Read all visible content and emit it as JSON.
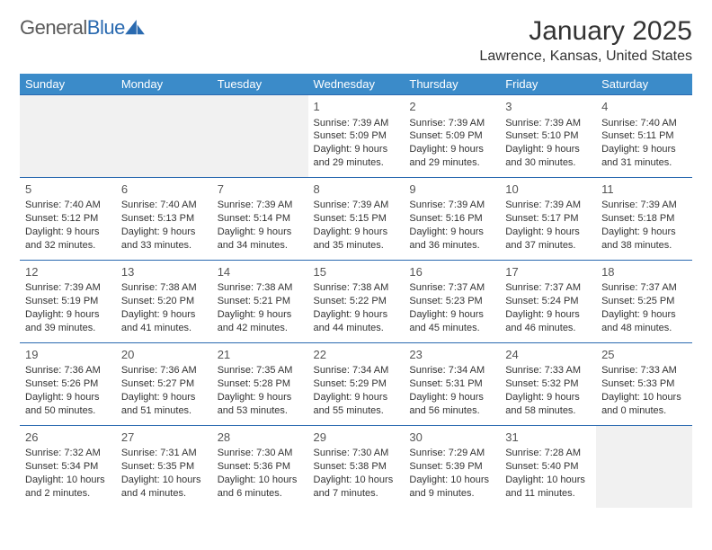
{
  "logo": {
    "text_general": "General",
    "text_blue": "Blue"
  },
  "title": "January 2025",
  "location": "Lawrence, Kansas, United States",
  "colors": {
    "header_bg": "#3b8bc9",
    "header_text": "#ffffff",
    "border": "#2a6ab0",
    "empty_bg": "#f1f1f1",
    "text": "#333333",
    "logo_gray": "#5a5a5a",
    "logo_blue": "#2a6ab0"
  },
  "day_headers": [
    "Sunday",
    "Monday",
    "Tuesday",
    "Wednesday",
    "Thursday",
    "Friday",
    "Saturday"
  ],
  "first_weekday_index": 3,
  "days": [
    {
      "n": 1,
      "sunrise": "7:39 AM",
      "sunset": "5:09 PM",
      "daylight": "9 hours and 29 minutes."
    },
    {
      "n": 2,
      "sunrise": "7:39 AM",
      "sunset": "5:09 PM",
      "daylight": "9 hours and 29 minutes."
    },
    {
      "n": 3,
      "sunrise": "7:39 AM",
      "sunset": "5:10 PM",
      "daylight": "9 hours and 30 minutes."
    },
    {
      "n": 4,
      "sunrise": "7:40 AM",
      "sunset": "5:11 PM",
      "daylight": "9 hours and 31 minutes."
    },
    {
      "n": 5,
      "sunrise": "7:40 AM",
      "sunset": "5:12 PM",
      "daylight": "9 hours and 32 minutes."
    },
    {
      "n": 6,
      "sunrise": "7:40 AM",
      "sunset": "5:13 PM",
      "daylight": "9 hours and 33 minutes."
    },
    {
      "n": 7,
      "sunrise": "7:39 AM",
      "sunset": "5:14 PM",
      "daylight": "9 hours and 34 minutes."
    },
    {
      "n": 8,
      "sunrise": "7:39 AM",
      "sunset": "5:15 PM",
      "daylight": "9 hours and 35 minutes."
    },
    {
      "n": 9,
      "sunrise": "7:39 AM",
      "sunset": "5:16 PM",
      "daylight": "9 hours and 36 minutes."
    },
    {
      "n": 10,
      "sunrise": "7:39 AM",
      "sunset": "5:17 PM",
      "daylight": "9 hours and 37 minutes."
    },
    {
      "n": 11,
      "sunrise": "7:39 AM",
      "sunset": "5:18 PM",
      "daylight": "9 hours and 38 minutes."
    },
    {
      "n": 12,
      "sunrise": "7:39 AM",
      "sunset": "5:19 PM",
      "daylight": "9 hours and 39 minutes."
    },
    {
      "n": 13,
      "sunrise": "7:38 AM",
      "sunset": "5:20 PM",
      "daylight": "9 hours and 41 minutes."
    },
    {
      "n": 14,
      "sunrise": "7:38 AM",
      "sunset": "5:21 PM",
      "daylight": "9 hours and 42 minutes."
    },
    {
      "n": 15,
      "sunrise": "7:38 AM",
      "sunset": "5:22 PM",
      "daylight": "9 hours and 44 minutes."
    },
    {
      "n": 16,
      "sunrise": "7:37 AM",
      "sunset": "5:23 PM",
      "daylight": "9 hours and 45 minutes."
    },
    {
      "n": 17,
      "sunrise": "7:37 AM",
      "sunset": "5:24 PM",
      "daylight": "9 hours and 46 minutes."
    },
    {
      "n": 18,
      "sunrise": "7:37 AM",
      "sunset": "5:25 PM",
      "daylight": "9 hours and 48 minutes."
    },
    {
      "n": 19,
      "sunrise": "7:36 AM",
      "sunset": "5:26 PM",
      "daylight": "9 hours and 50 minutes."
    },
    {
      "n": 20,
      "sunrise": "7:36 AM",
      "sunset": "5:27 PM",
      "daylight": "9 hours and 51 minutes."
    },
    {
      "n": 21,
      "sunrise": "7:35 AM",
      "sunset": "5:28 PM",
      "daylight": "9 hours and 53 minutes."
    },
    {
      "n": 22,
      "sunrise": "7:34 AM",
      "sunset": "5:29 PM",
      "daylight": "9 hours and 55 minutes."
    },
    {
      "n": 23,
      "sunrise": "7:34 AM",
      "sunset": "5:31 PM",
      "daylight": "9 hours and 56 minutes."
    },
    {
      "n": 24,
      "sunrise": "7:33 AM",
      "sunset": "5:32 PM",
      "daylight": "9 hours and 58 minutes."
    },
    {
      "n": 25,
      "sunrise": "7:33 AM",
      "sunset": "5:33 PM",
      "daylight": "10 hours and 0 minutes."
    },
    {
      "n": 26,
      "sunrise": "7:32 AM",
      "sunset": "5:34 PM",
      "daylight": "10 hours and 2 minutes."
    },
    {
      "n": 27,
      "sunrise": "7:31 AM",
      "sunset": "5:35 PM",
      "daylight": "10 hours and 4 minutes."
    },
    {
      "n": 28,
      "sunrise": "7:30 AM",
      "sunset": "5:36 PM",
      "daylight": "10 hours and 6 minutes."
    },
    {
      "n": 29,
      "sunrise": "7:30 AM",
      "sunset": "5:38 PM",
      "daylight": "10 hours and 7 minutes."
    },
    {
      "n": 30,
      "sunrise": "7:29 AM",
      "sunset": "5:39 PM",
      "daylight": "10 hours and 9 minutes."
    },
    {
      "n": 31,
      "sunrise": "7:28 AM",
      "sunset": "5:40 PM",
      "daylight": "10 hours and 11 minutes."
    }
  ],
  "labels": {
    "sunrise": "Sunrise:",
    "sunset": "Sunset:",
    "daylight": "Daylight:"
  }
}
